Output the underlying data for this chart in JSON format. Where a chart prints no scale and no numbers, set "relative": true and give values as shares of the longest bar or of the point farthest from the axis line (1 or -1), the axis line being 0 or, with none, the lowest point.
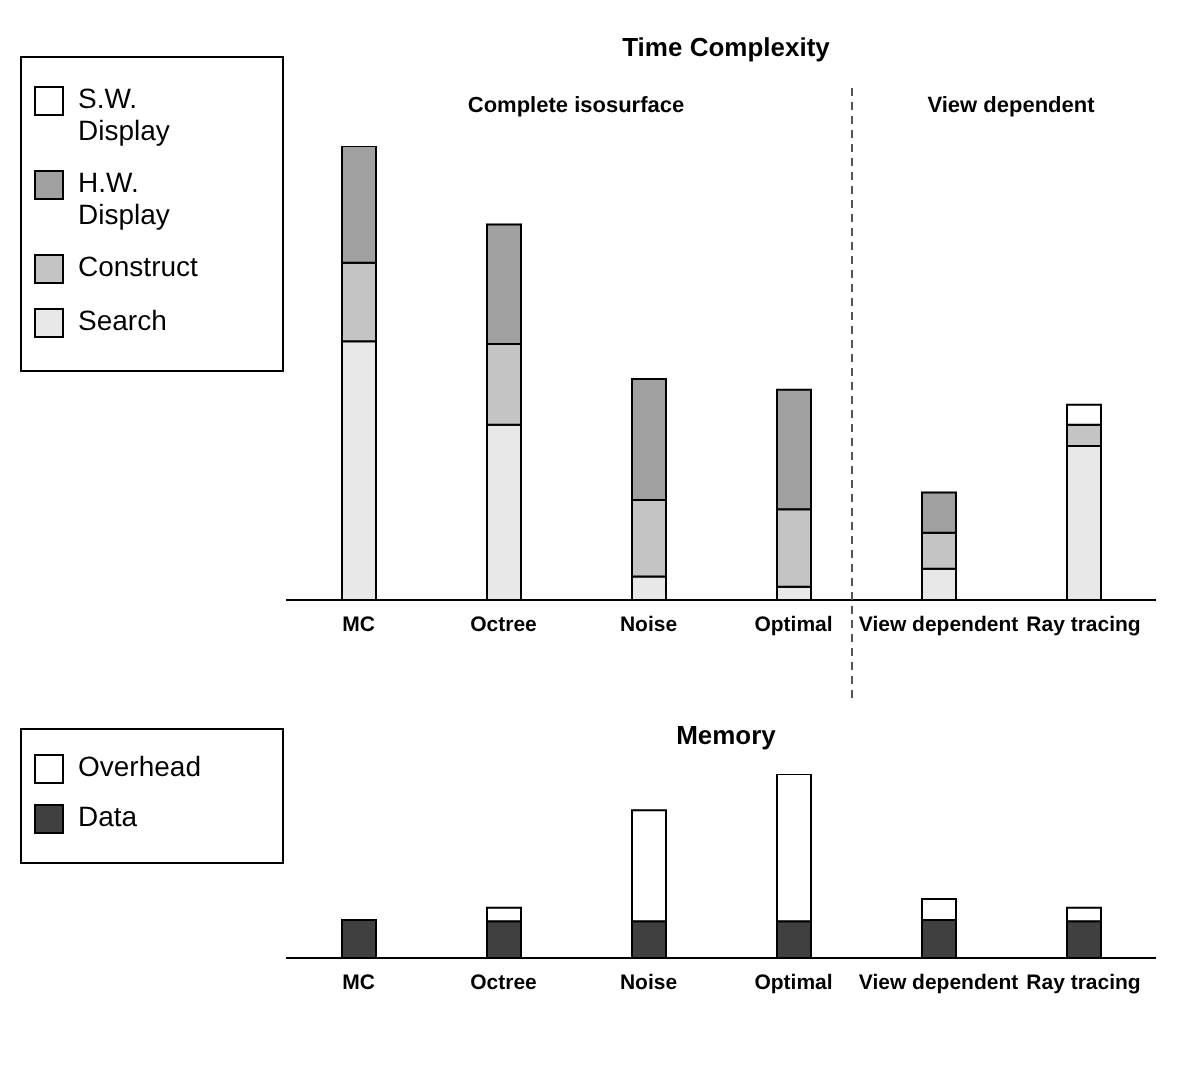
{
  "chart_data": [
    {
      "type": "bar",
      "title": "Time Complexity",
      "annotations": [
        "Complete isosurface",
        "View dependent"
      ],
      "categories": [
        "MC",
        "Octree",
        "Noise",
        "Optimal",
        "View dependent",
        "Ray tracing"
      ],
      "stacked": true,
      "relative": true,
      "legend": "left",
      "series": [
        {
          "name": "Search",
          "color": "#e8e8e8",
          "values": [
            0.57,
            0.386,
            0.052,
            0.029,
            0.069,
            0.339
          ]
        },
        {
          "name": "Construct",
          "color": "#c4c4c4",
          "values": [
            0.173,
            0.178,
            0.168,
            0.171,
            0.079,
            0.047
          ]
        },
        {
          "name": "H.W. Display",
          "color": "#a0a0a0",
          "values": [
            0.257,
            0.263,
            0.267,
            0.263,
            0.089,
            0
          ]
        },
        {
          "name": "S.W. Display",
          "color": "#ffffff",
          "values": [
            0,
            0,
            0,
            0,
            0,
            0.044
          ]
        }
      ]
    },
    {
      "type": "bar",
      "title": "Memory",
      "categories": [
        "MC",
        "Octree",
        "Noise",
        "Optimal",
        "View dependent",
        "Ray tracing"
      ],
      "stacked": true,
      "relative": true,
      "legend": "left",
      "series": [
        {
          "name": "Data",
          "color": "#404040",
          "values": [
            0.207,
            0.2,
            0.2,
            0.2,
            0.207,
            0.2
          ]
        },
        {
          "name": "Overhead",
          "color": "#ffffff",
          "values": [
            0,
            0.073,
            0.603,
            0.8,
            0.113,
            0.073
          ]
        }
      ]
    }
  ]
}
